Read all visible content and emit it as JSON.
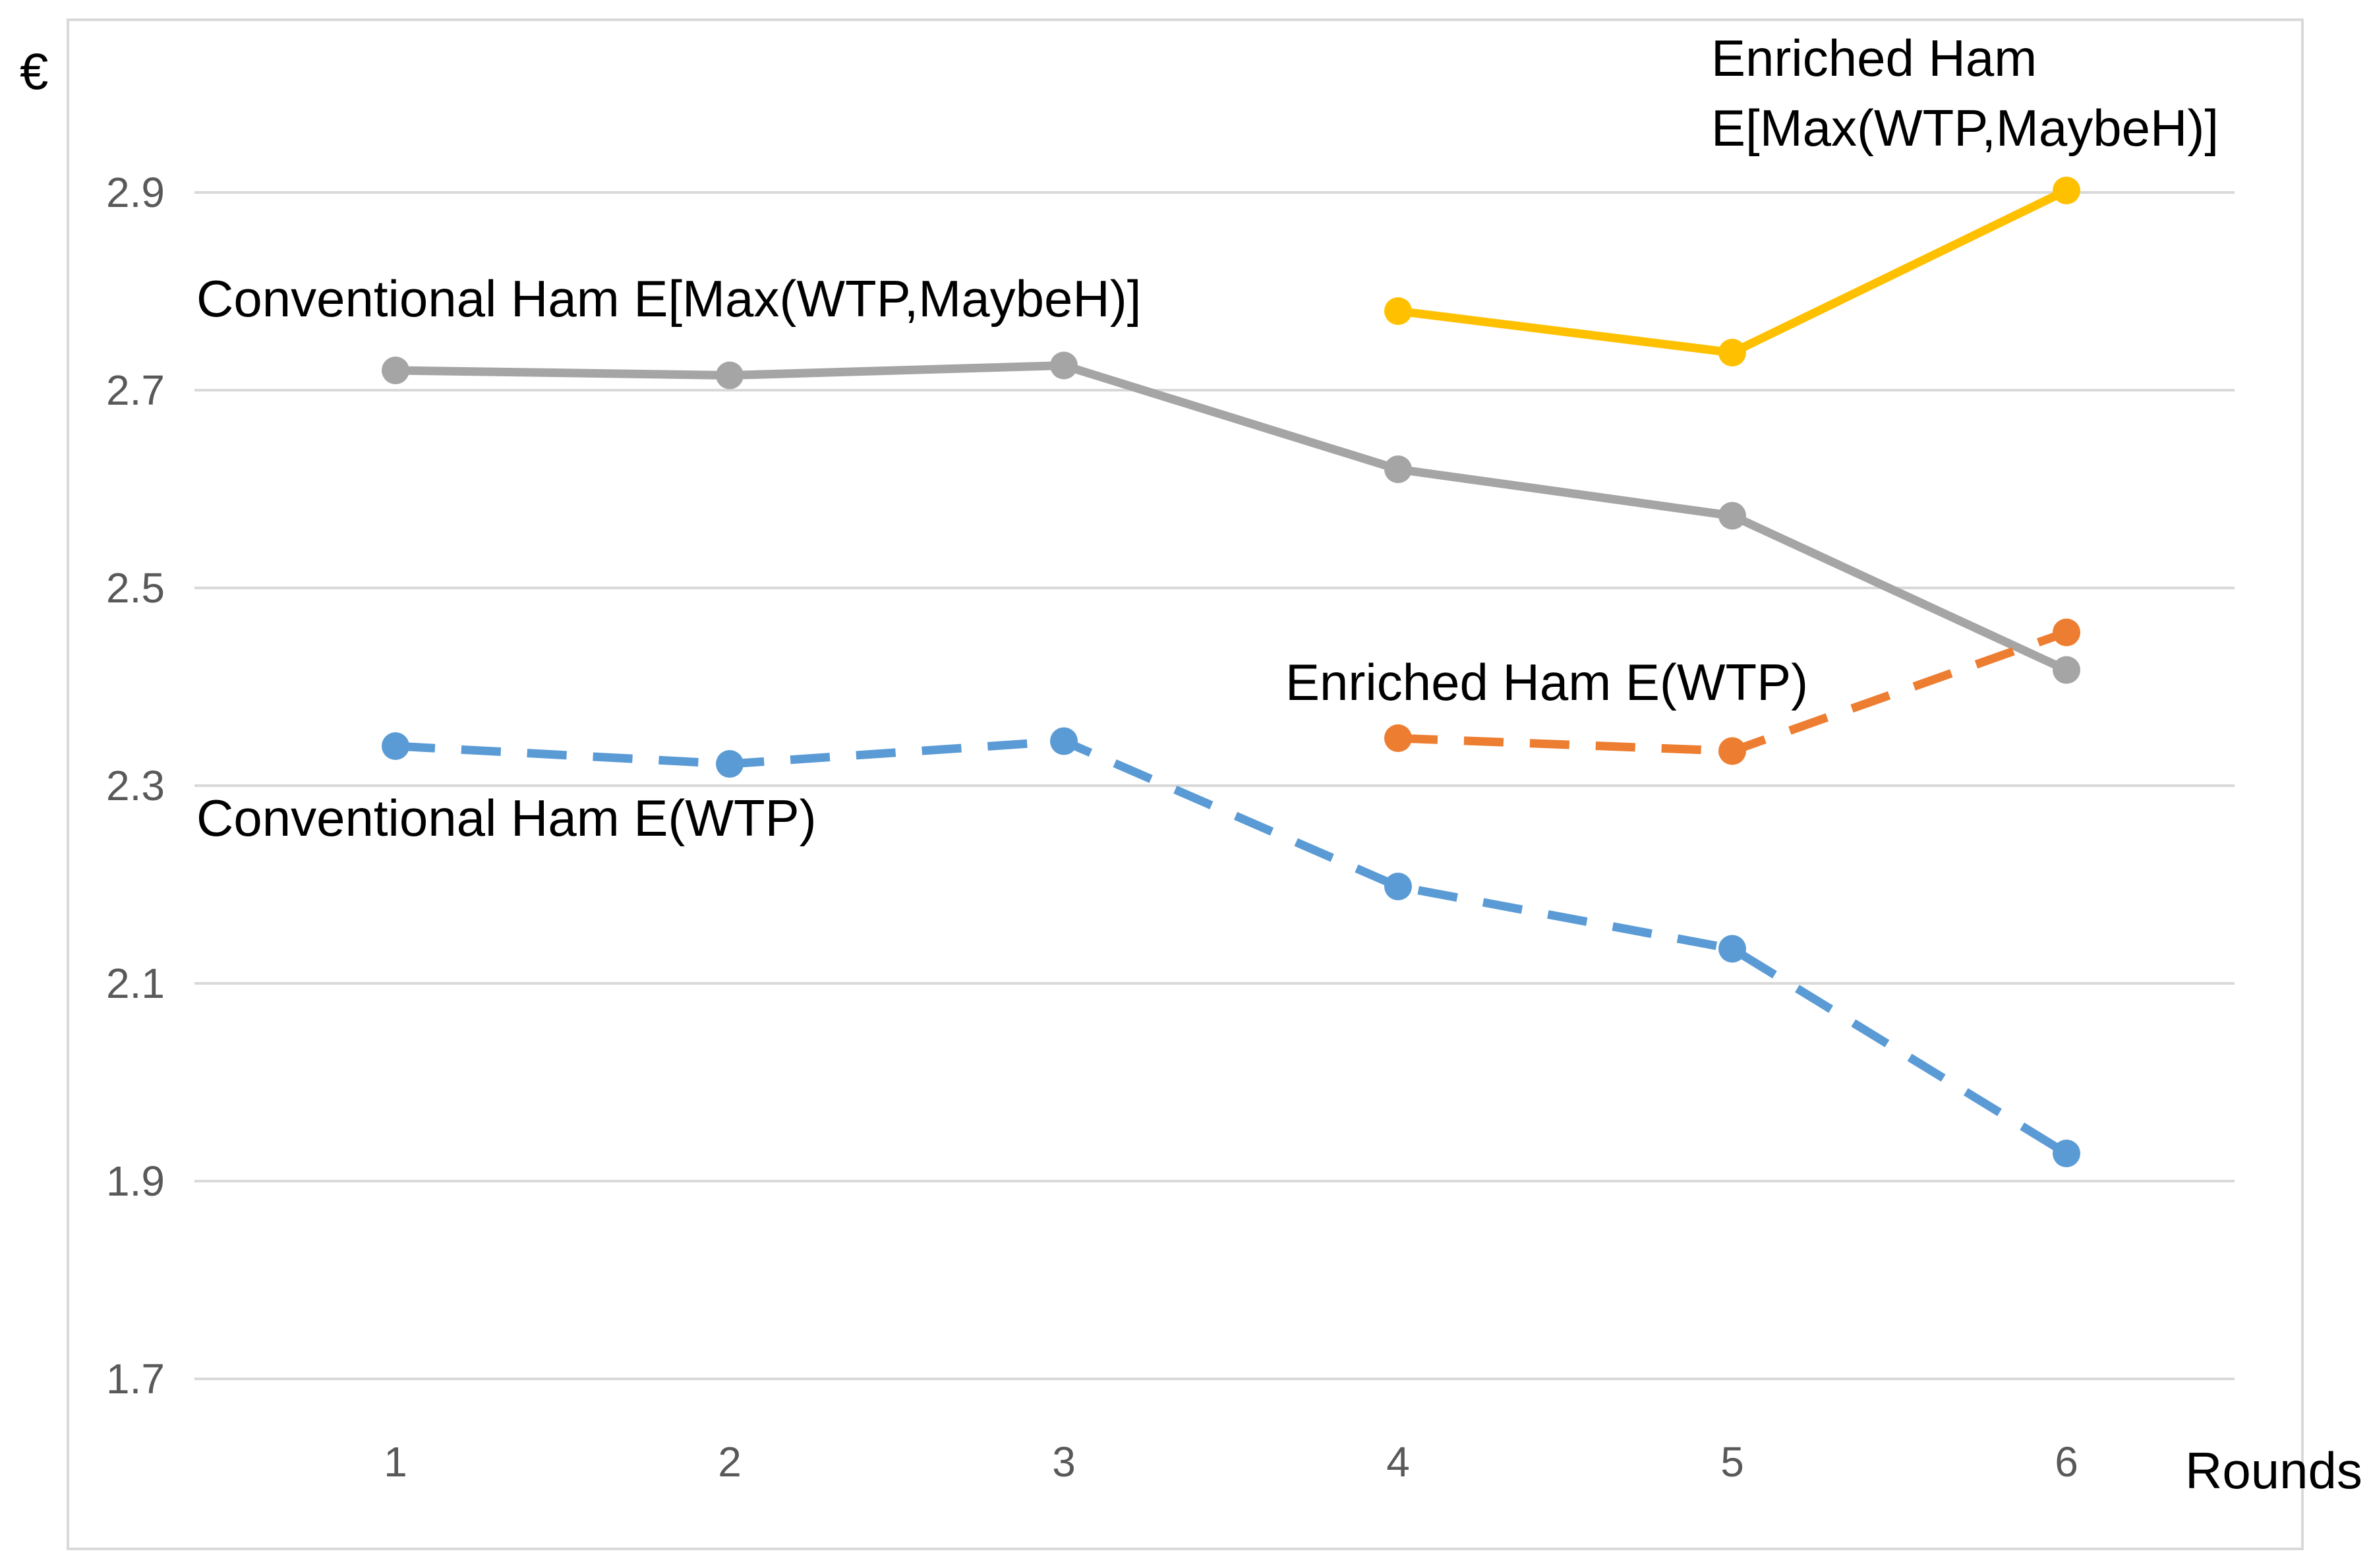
{
  "chart_data": {
    "type": "line",
    "title": "",
    "xlabel": "Rounds",
    "ylabel": "€",
    "x": [
      1,
      2,
      3,
      4,
      5,
      6
    ],
    "x_tick_labels": [
      "1",
      "2",
      "3",
      "4",
      "5",
      "6"
    ],
    "y_ticks": [
      1.7,
      1.9,
      2.1,
      2.3,
      2.5,
      2.7,
      2.9
    ],
    "y_tick_labels": [
      "1.7",
      "1.9",
      "2.1",
      "2.3",
      "2.5",
      "2.7",
      "2.9"
    ],
    "ylim": [
      1.7,
      3.05
    ],
    "grid": "horizontal",
    "legend": "none (series labeled inline)",
    "series": [
      {
        "name": "Conventional Ham E[Max(WTP,MaybeH)]",
        "label_lines": [
          "Conventional Ham E[Max(WTP,MaybeH)]"
        ],
        "color": "#a5a5a5",
        "dash": "solid",
        "x": [
          1,
          2,
          3,
          4,
          5,
          6
        ],
        "values": [
          2.72,
          2.715,
          2.725,
          2.62,
          2.573,
          2.417
        ]
      },
      {
        "name": "Conventional Ham E(WTP)",
        "label_lines": [
          "Conventional Ham E(WTP)"
        ],
        "color": "#5b9bd5",
        "dash": "dashed",
        "x": [
          1,
          2,
          3,
          4,
          5,
          6
        ],
        "values": [
          2.34,
          2.322,
          2.345,
          2.198,
          2.135,
          1.928
        ]
      },
      {
        "name": "Enriched Ham E[Max(WTP,MaybeH)]",
        "label_lines": [
          "Enriched Ham",
          "E[Max(WTP,MaybeH)]"
        ],
        "color": "#ffc000",
        "dash": "solid",
        "x": [
          4,
          5,
          6
        ],
        "values": [
          2.78,
          2.738,
          2.902
        ]
      },
      {
        "name": "Enriched Ham E(WTP)",
        "label_lines": [
          "Enriched Ham E(WTP)"
        ],
        "color": "#ed7d31",
        "dash": "dashed",
        "x": [
          4,
          5,
          6
        ],
        "values": [
          2.348,
          2.335,
          2.455
        ]
      }
    ]
  }
}
